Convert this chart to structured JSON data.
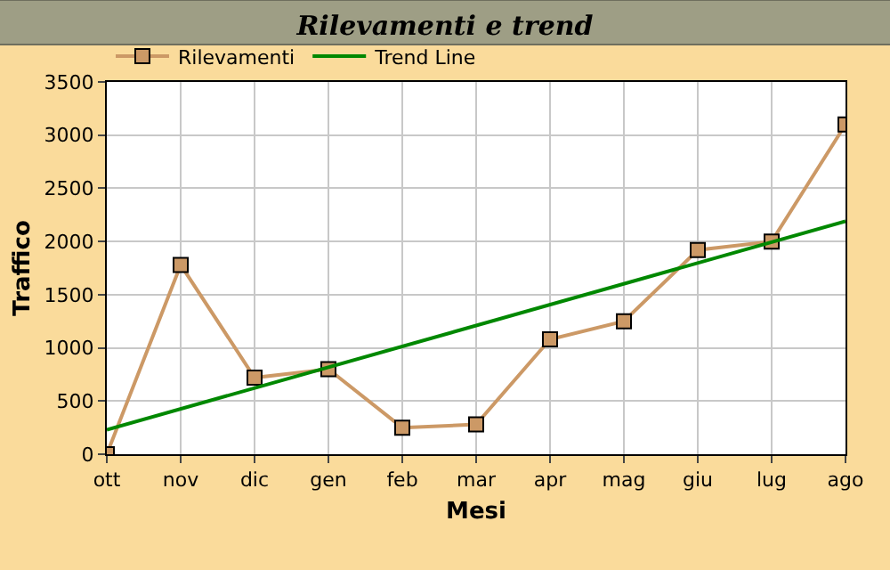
{
  "chart_data": {
    "type": "line",
    "title": "Rilevamenti e trend",
    "xlabel": "Mesi",
    "ylabel": "Traffico",
    "categories": [
      "ott",
      "nov",
      "dic",
      "gen",
      "feb",
      "mar",
      "apr",
      "mag",
      "giu",
      "lug",
      "ago"
    ],
    "series": [
      {
        "name": "Rilevamenti",
        "color": "#cc9966",
        "marker": "square",
        "values": [
          0,
          1780,
          720,
          800,
          250,
          280,
          1080,
          1250,
          1920,
          2000,
          3100
        ]
      },
      {
        "name": "Trend Line",
        "color": "#008800",
        "marker": "none",
        "x": [
          "ott",
          "ago"
        ],
        "values": [
          230,
          2190
        ]
      }
    ],
    "ylim": [
      0,
      3500
    ],
    "yticks": [
      0,
      500,
      1000,
      1500,
      2000,
      2500,
      3000,
      3500
    ],
    "grid": true,
    "legend": "top left"
  }
}
